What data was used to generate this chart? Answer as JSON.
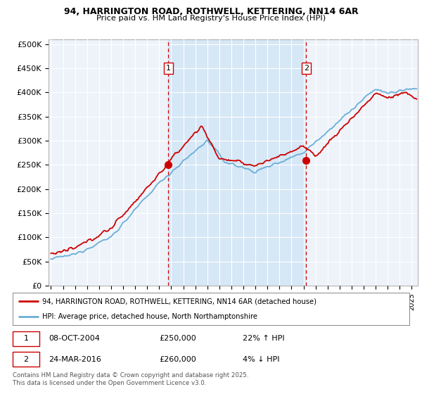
{
  "title1": "94, HARRINGTON ROAD, ROTHWELL, KETTERING, NN14 6AR",
  "title2": "Price paid vs. HM Land Registry's House Price Index (HPI)",
  "ylabel_ticks": [
    "£0",
    "£50K",
    "£100K",
    "£150K",
    "£200K",
    "£250K",
    "£300K",
    "£350K",
    "£400K",
    "£450K",
    "£500K"
  ],
  "ytick_values": [
    0,
    50000,
    100000,
    150000,
    200000,
    250000,
    300000,
    350000,
    400000,
    450000,
    500000
  ],
  "ylim": [
    0,
    510000
  ],
  "xlim_start": 1994.8,
  "xlim_end": 2025.5,
  "sale1_x": 2004.77,
  "sale1_y": 250000,
  "sale1_label": "1",
  "sale2_x": 2016.23,
  "sale2_y": 260000,
  "sale2_label": "2",
  "line_color_hpi": "#6baed6",
  "line_color_price": "#cc0000",
  "marker_color": "#cc0000",
  "dashed_line_color": "#cc0000",
  "shade_color": "#d0e4f5",
  "background_color": "#eef3fa",
  "grid_color": "#ffffff",
  "legend_line1": "94, HARRINGTON ROAD, ROTHWELL, KETTERING, NN14 6AR (detached house)",
  "legend_line2": "HPI: Average price, detached house, North Northamptonshire",
  "annotation1_date": "08-OCT-2004",
  "annotation1_price": "£250,000",
  "annotation1_hpi": "22% ↑ HPI",
  "annotation2_date": "24-MAR-2016",
  "annotation2_price": "£260,000",
  "annotation2_hpi": "4% ↓ HPI",
  "footer": "Contains HM Land Registry data © Crown copyright and database right 2025.\nThis data is licensed under the Open Government Licence v3.0.",
  "xtick_years": [
    1995,
    1996,
    1997,
    1998,
    1999,
    2000,
    2001,
    2002,
    2003,
    2004,
    2005,
    2006,
    2007,
    2008,
    2009,
    2010,
    2011,
    2012,
    2013,
    2014,
    2015,
    2016,
    2017,
    2018,
    2019,
    2020,
    2021,
    2022,
    2023,
    2024,
    2025
  ]
}
